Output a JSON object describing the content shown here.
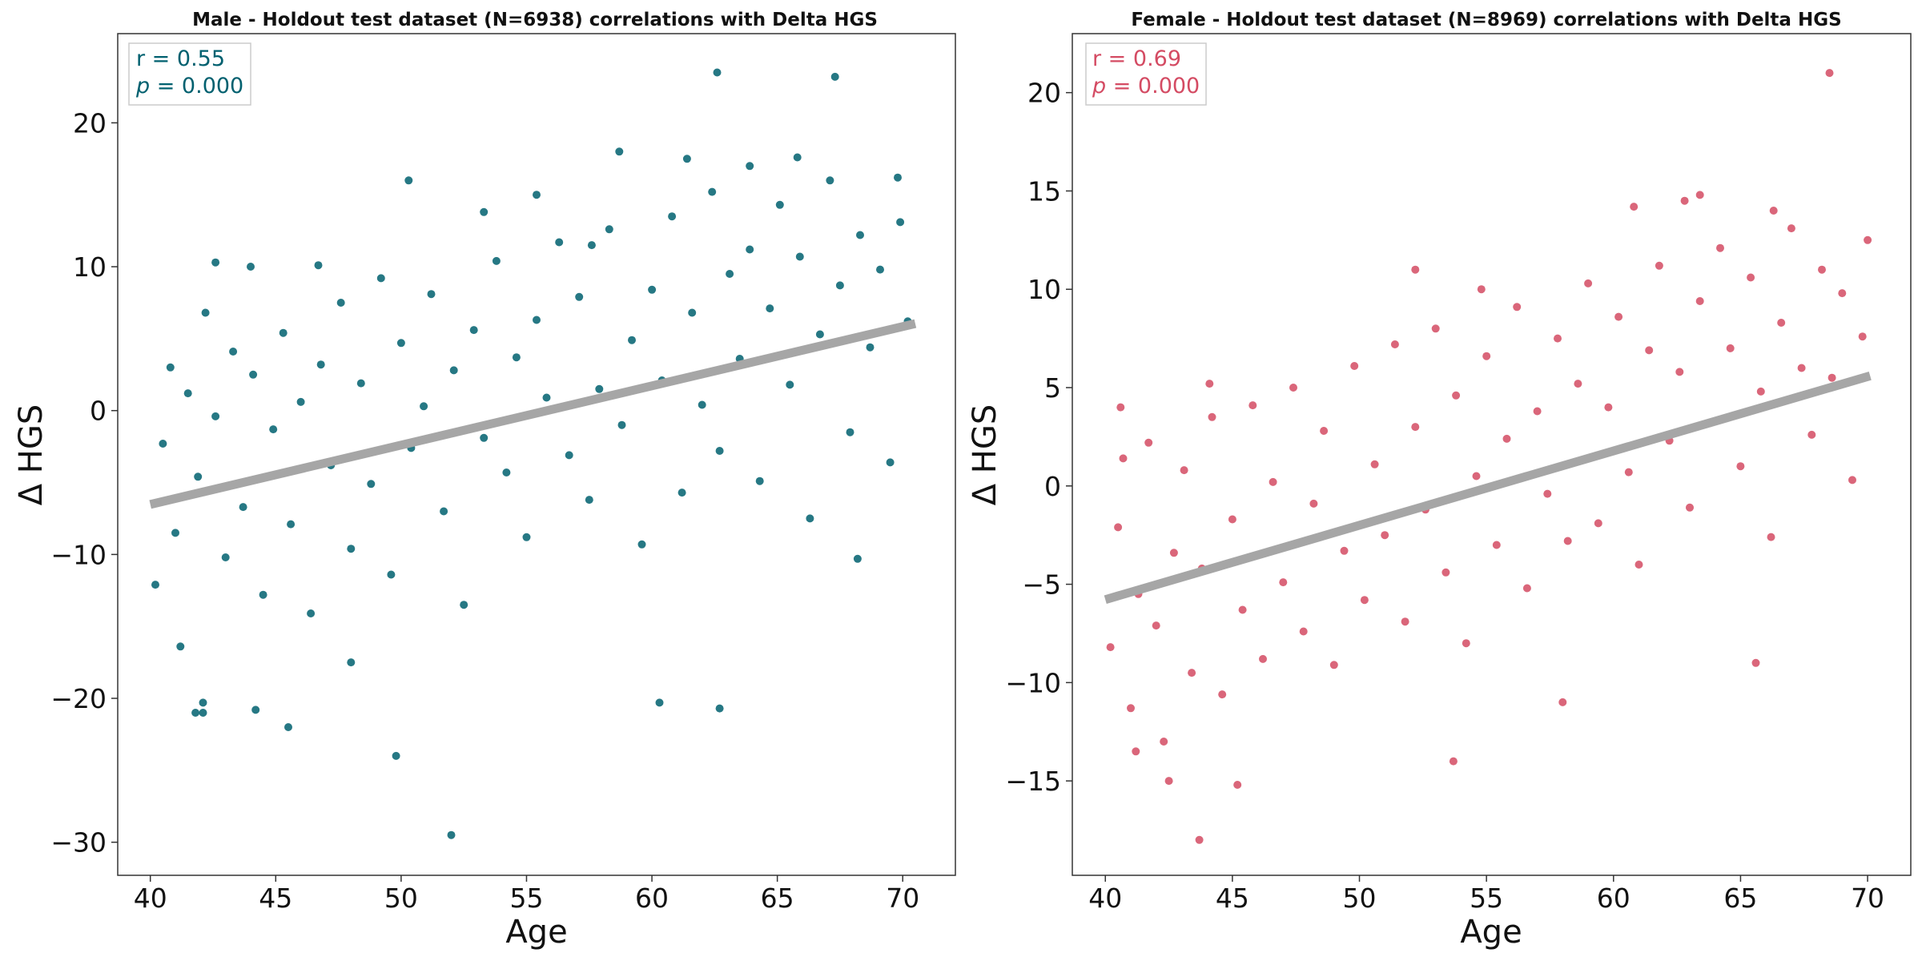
{
  "chart_data": [
    {
      "type": "scatter",
      "title": "Male - Holdout test dataset (N=6938) correlations with Delta HGS",
      "xlabel": "Age",
      "ylabel": "Δ HGS",
      "xlim": [
        38.7,
        72.1
      ],
      "ylim": [
        -32.3,
        26.2
      ],
      "xticks": [
        40,
        45,
        50,
        55,
        60,
        65,
        70
      ],
      "yticks": [
        -30,
        -20,
        -10,
        0,
        10,
        20
      ],
      "ytick_labels": [
        "−30",
        "−20",
        "−10",
        "0",
        "10",
        "20"
      ],
      "grid": false,
      "legend_position": "top-left",
      "annotation": {
        "r_text": "r = 0.55",
        "p_text": "p",
        "p_value_text": " = 0.000"
      },
      "point_color": "#00606f",
      "line_color": "#a6a6a6",
      "series": [
        {
          "n": 6938,
          "x_range": [
            40,
            70.5
          ],
          "regression": {
            "slope": 0.412,
            "intercept": -23.0
          },
          "x": [
            40.2,
            40.5,
            40.8,
            41.0,
            41.2,
            41.5,
            41.9,
            42.1,
            42.2,
            42.6,
            43.0,
            43.3,
            43.7,
            44.1,
            44.5,
            44.9,
            45.3,
            45.6,
            46.0,
            46.4,
            46.8,
            47.2,
            47.6,
            48.0,
            48.4,
            48.8,
            49.2,
            49.6,
            50.0,
            50.4,
            50.9,
            51.2,
            51.7,
            52.1,
            52.5,
            52.9,
            53.3,
            53.8,
            54.2,
            54.6,
            55.0,
            55.4,
            55.8,
            56.3,
            56.7,
            57.1,
            57.5,
            57.9,
            58.3,
            58.8,
            59.2,
            59.6,
            60.0,
            60.4,
            60.8,
            61.2,
            61.6,
            62.0,
            62.4,
            62.7,
            63.1,
            63.5,
            63.9,
            64.3,
            64.7,
            65.1,
            65.5,
            65.9,
            66.3,
            66.7,
            67.1,
            67.5,
            67.9,
            68.3,
            68.7,
            69.1,
            69.5,
            69.9,
            70.2,
            52.0,
            49.8,
            62.7,
            60.3,
            45.5,
            42.1,
            44.2,
            48.0,
            67.3,
            50.3,
            58.7,
            62.6,
            44.0,
            65.8,
            69.8,
            42.6,
            41.8,
            53.3,
            55.4,
            63.9,
            57.6,
            61.4,
            46.7,
            68.2
          ],
          "y": [
            -12.1,
            -2.3,
            3.0,
            -8.5,
            -16.4,
            1.2,
            -4.6,
            -20.3,
            6.8,
            -0.4,
            -10.2,
            4.1,
            -6.7,
            2.5,
            -12.8,
            -1.3,
            5.4,
            -7.9,
            0.6,
            -14.1,
            3.2,
            -3.8,
            7.5,
            -9.6,
            1.9,
            -5.1,
            9.2,
            -11.4,
            4.7,
            -2.6,
            0.3,
            8.1,
            -7.0,
            2.8,
            -13.5,
            5.6,
            -1.9,
            10.4,
            -4.3,
            3.7,
            -8.8,
            6.3,
            0.9,
            11.7,
            -3.1,
            7.9,
            -6.2,
            1.5,
            12.6,
            -1.0,
            4.9,
            -9.3,
            8.4,
            2.1,
            13.5,
            -5.7,
            6.8,
            0.4,
            15.2,
            -2.8,
            9.5,
            3.6,
            11.2,
            -4.9,
            7.1,
            14.3,
            1.8,
            10.7,
            -7.5,
            5.3,
            16.0,
            8.7,
            -1.5,
            12.2,
            4.4,
            9.8,
            -3.6,
            13.1,
            6.2,
            -29.5,
            -24.0,
            -20.7,
            -20.3,
            -22.0,
            -21.0,
            -20.8,
            -17.5,
            23.2,
            16.0,
            18.0,
            23.5,
            10.0,
            17.6,
            16.2,
            10.3,
            -21.0,
            13.8,
            15.0,
            17.0,
            11.5,
            17.5,
            10.1,
            -10.3
          ]
        }
      ]
    },
    {
      "type": "scatter",
      "title": "Female - Holdout test dataset (N=8969) correlations with Delta HGS",
      "xlabel": "Age",
      "ylabel": "Δ HGS",
      "xlim": [
        38.7,
        71.7
      ],
      "ylim": [
        -19.8,
        23.0
      ],
      "xticks": [
        40,
        45,
        50,
        55,
        60,
        65,
        70
      ],
      "yticks": [
        -15,
        -10,
        -5,
        0,
        5,
        10,
        15,
        20
      ],
      "ytick_labels": [
        "−15",
        "−10",
        "−5",
        "0",
        "5",
        "10",
        "15",
        "20"
      ],
      "grid": false,
      "legend_position": "top-left",
      "annotation": {
        "r_text": "r = 0.69",
        "p_text": "p",
        "p_value_text": " = 0.000"
      },
      "point_color": "#d44b63",
      "line_color": "#a6a6a6",
      "series": [
        {
          "n": 8969,
          "x_range": [
            40,
            70.1
          ],
          "regression": {
            "slope": 0.378,
            "intercept": -20.9
          },
          "x": [
            40.2,
            40.5,
            40.7,
            41.0,
            41.3,
            41.7,
            42.0,
            42.3,
            42.7,
            43.1,
            43.4,
            43.8,
            44.2,
            44.6,
            45.0,
            45.4,
            45.8,
            46.2,
            46.6,
            47.0,
            47.4,
            47.8,
            48.2,
            48.6,
            49.0,
            49.4,
            49.8,
            50.2,
            50.6,
            51.0,
            51.4,
            51.8,
            52.2,
            52.6,
            53.0,
            53.4,
            53.8,
            54.2,
            54.6,
            55.0,
            55.4,
            55.8,
            56.2,
            56.6,
            57.0,
            57.4,
            57.8,
            58.2,
            58.6,
            59.0,
            59.4,
            59.8,
            60.2,
            60.6,
            61.0,
            61.4,
            61.8,
            62.2,
            62.6,
            63.0,
            63.4,
            63.8,
            64.2,
            64.6,
            65.0,
            65.4,
            65.8,
            66.2,
            66.6,
            67.0,
            67.4,
            67.8,
            68.2,
            68.6,
            69.0,
            69.4,
            69.8,
            70.0,
            43.7,
            45.2,
            42.5,
            53.7,
            58.0,
            65.6,
            68.5,
            60.8,
            66.3,
            62.8,
            63.4,
            40.6,
            52.2,
            54.8,
            44.1,
            41.2
          ],
          "y": [
            -8.2,
            -2.1,
            1.4,
            -11.3,
            -5.5,
            2.2,
            -7.1,
            -13.0,
            -3.4,
            0.8,
            -9.5,
            -4.2,
            3.5,
            -10.6,
            -1.7,
            -6.3,
            4.1,
            -8.8,
            0.2,
            -4.9,
            5.0,
            -7.4,
            -0.9,
            2.8,
            -9.1,
            -3.3,
            6.1,
            -5.8,
            1.1,
            -2.5,
            7.2,
            -6.9,
            3.0,
            -1.2,
            8.0,
            -4.4,
            4.6,
            -8.0,
            0.5,
            6.6,
            -3.0,
            2.4,
            9.1,
            -5.2,
            3.8,
            -0.4,
            7.5,
            -2.8,
            5.2,
            10.3,
            -1.9,
            4.0,
            8.6,
            0.7,
            -4.0,
            6.9,
            11.2,
            2.3,
            5.8,
            -1.1,
            9.4,
            3.2,
            12.1,
            7.0,
            1.0,
            10.6,
            4.8,
            -2.6,
            8.3,
            13.1,
            6.0,
            2.6,
            11.0,
            5.5,
            9.8,
            0.3,
            7.6,
            12.5,
            -18.0,
            -15.2,
            -15.0,
            -14.0,
            -11.0,
            -9.0,
            21.0,
            14.2,
            14.0,
            14.5,
            14.8,
            4.0,
            11.0,
            10.0,
            5.2,
            -13.5
          ]
        }
      ]
    }
  ]
}
